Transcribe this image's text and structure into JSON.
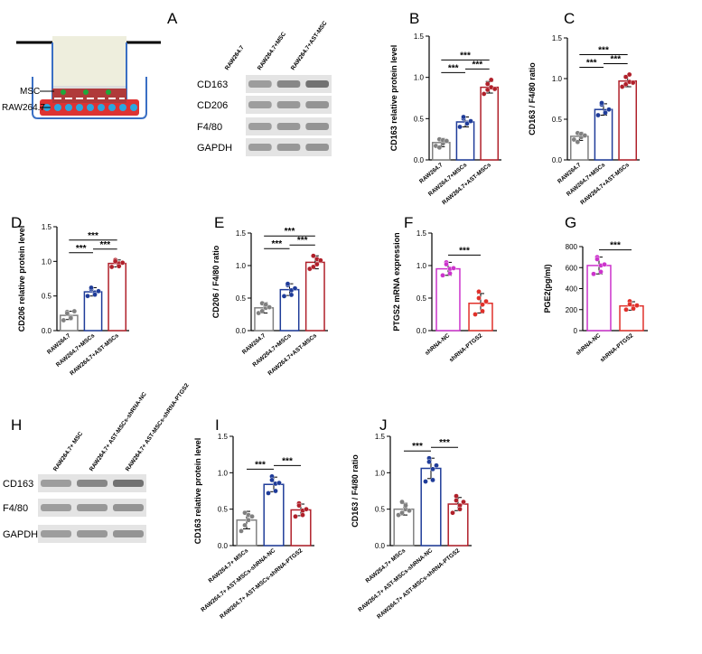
{
  "schematic": {
    "labels": [
      "MSC",
      "RAW264.7"
    ]
  },
  "blots": [
    {
      "panel": "A",
      "columns": [
        "RAW264.7",
        "RAW264.7+MSC",
        "RAW264.7+AST-MSC"
      ],
      "rows": [
        "CD163",
        "CD206",
        "F4/80",
        "GAPDH"
      ]
    },
    {
      "panel": "H",
      "columns": [
        "RAW264.7+ MSC",
        "RAW264.7+ AST-MSCs-shRNA-NC",
        "RAW264.7+ AST-MSCs-shRNA-PTGS2"
      ],
      "rows": [
        "CD163",
        "F4/80",
        "GAPDH"
      ]
    }
  ],
  "chart_data": [
    {
      "type": "bar",
      "panel": "B",
      "ylabel": "CD163 relative protein level",
      "categories": [
        "RAW264.7",
        "RAW264.7+MSCs",
        "RAW264.7+AST-MSCs"
      ],
      "values": [
        0.21,
        0.46,
        0.88
      ],
      "errors": [
        0.05,
        0.06,
        0.07
      ],
      "points": [
        [
          0.17,
          0.25,
          0.2,
          0.15,
          0.24,
          0.23
        ],
        [
          0.4,
          0.5,
          0.45,
          0.52,
          0.44,
          0.47
        ],
        [
          0.8,
          0.92,
          0.97,
          0.85,
          0.88,
          0.86
        ]
      ],
      "colors": [
        "#808080",
        "#1f3c99",
        "#b0202a"
      ],
      "ylim": [
        0,
        1.5
      ],
      "yticks": [
        {
          "value": 0,
          "label": "0.0"
        },
        0.5,
        {
          "value": 1,
          "label": "1.0"
        },
        1.5
      ],
      "comparisons": [
        {
          "pair": [
            "RAW264.7",
            "RAW264.7+MSCs"
          ],
          "label": "***"
        },
        {
          "pair": [
            "RAW264.7+MSCs",
            "RAW264.7+AST-MSCs"
          ],
          "label": "***"
        },
        {
          "pair": [
            "RAW264.7",
            "RAW264.7+AST-MSCs"
          ],
          "label": "***"
        }
      ]
    },
    {
      "type": "bar",
      "panel": "C",
      "ylabel": "CD163 / F4/80 ratio",
      "categories": [
        "RAW264.7",
        "RAW264.7+MSCs",
        "RAW264.7+AST-MSCs"
      ],
      "values": [
        0.29,
        0.62,
        0.97
      ],
      "errors": [
        0.05,
        0.07,
        0.07
      ],
      "points": [
        [
          0.25,
          0.33,
          0.28,
          0.22,
          0.32,
          0.3
        ],
        [
          0.55,
          0.68,
          0.6,
          0.7,
          0.58,
          0.62
        ],
        [
          0.9,
          1.02,
          1.05,
          0.93,
          0.96,
          0.95
        ]
      ],
      "colors": [
        "#808080",
        "#1f3c99",
        "#b0202a"
      ],
      "ylim": [
        0,
        1.5
      ],
      "yticks": [
        {
          "value": 0,
          "label": "0.0"
        },
        0.5,
        {
          "value": 1,
          "label": "1.0"
        },
        1.5
      ],
      "comparisons": [
        {
          "pair": [
            "RAW264.7",
            "RAW264.7+MSCs"
          ],
          "label": "***"
        },
        {
          "pair": [
            "RAW264.7+MSCs",
            "RAW264.7+AST-MSCs"
          ],
          "label": "***"
        },
        {
          "pair": [
            "RAW264.7",
            "RAW264.7+AST-MSCs"
          ],
          "label": "***"
        }
      ]
    },
    {
      "type": "bar",
      "panel": "D",
      "ylabel": "CD206 relative protein level",
      "categories": [
        "RAW264.7",
        "RAW264.7+MSCs",
        "RAW264.7+AST-MSCs"
      ],
      "values": [
        0.22,
        0.56,
        0.97
      ],
      "errors": [
        0.06,
        0.06,
        0.05
      ],
      "points": [
        [
          0.15,
          0.27,
          0.2,
          0.25,
          0.18,
          0.28
        ],
        [
          0.5,
          0.6,
          0.55,
          0.62,
          0.52,
          0.57
        ],
        [
          0.92,
          1.02,
          0.97,
          1.0,
          0.93,
          0.98
        ]
      ],
      "colors": [
        "#808080",
        "#1f3c99",
        "#b0202a"
      ],
      "ylim": [
        0,
        1.5
      ],
      "yticks": [
        {
          "value": 0,
          "label": "0.0"
        },
        0.5,
        {
          "value": 1,
          "label": "1.0"
        },
        1.5
      ],
      "comparisons": [
        {
          "pair": [
            "RAW264.7",
            "RAW264.7+MSCs"
          ],
          "label": "***"
        },
        {
          "pair": [
            "RAW264.7+MSCs",
            "RAW264.7+AST-MSCs"
          ],
          "label": "***"
        },
        {
          "pair": [
            "RAW264.7",
            "RAW264.7+AST-MSCs"
          ],
          "label": "***"
        }
      ]
    },
    {
      "type": "bar",
      "panel": "E",
      "ylabel": "CD206 / F4/80 ratio",
      "categories": [
        "RAW264.7",
        "RAW264.7+MSCs",
        "RAW264.7+AST-MSCs"
      ],
      "values": [
        0.35,
        0.63,
        1.05
      ],
      "errors": [
        0.08,
        0.09,
        0.1
      ],
      "points": [
        [
          0.27,
          0.42,
          0.35,
          0.3,
          0.4,
          0.36
        ],
        [
          0.53,
          0.7,
          0.62,
          0.72,
          0.55,
          0.65
        ],
        [
          0.95,
          1.15,
          1.1,
          0.98,
          1.02,
          1.08
        ]
      ],
      "colors": [
        "#808080",
        "#1f3c99",
        "#b0202a"
      ],
      "ylim": [
        0,
        1.5
      ],
      "yticks": [
        {
          "value": 0,
          "label": "0.0"
        },
        0.5,
        {
          "value": 1,
          "label": "1.0"
        },
        1.5
      ],
      "comparisons": [
        {
          "pair": [
            "RAW264.7",
            "RAW264.7+MSCs"
          ],
          "label": "***"
        },
        {
          "pair": [
            "RAW264.7+MSCs",
            "RAW264.7+AST-MSCs"
          ],
          "label": "***"
        },
        {
          "pair": [
            "RAW264.7",
            "RAW264.7+AST-MSCs"
          ],
          "label": "***"
        }
      ]
    },
    {
      "type": "bar",
      "panel": "F",
      "ylabel": "PTGS2 mRNA expression",
      "categories": [
        "shRNA-NC",
        "shRNA-PTGS2"
      ],
      "values": [
        0.95,
        0.42
      ],
      "errors": [
        0.1,
        0.15
      ],
      "points": [
        [
          0.85,
          1.05,
          0.95,
          1.02,
          0.88,
          0.96
        ],
        [
          0.25,
          0.6,
          0.4,
          0.5,
          0.3,
          0.45
        ]
      ],
      "colors": [
        "#cc33cc",
        "#e0302a"
      ],
      "ylim": [
        0,
        1.5
      ],
      "yticks": [
        {
          "value": 0,
          "label": "0.0"
        },
        0.5,
        {
          "value": 1,
          "label": "1.0"
        },
        1.5
      ],
      "comparisons": [
        {
          "pair": [
            "shRNA-NC",
            "shRNA-PTGS2"
          ],
          "label": "***"
        }
      ]
    },
    {
      "type": "bar",
      "panel": "G",
      "ylabel": "PGE2(pg/ml)",
      "categories": [
        "shRNA-NC",
        "shRNA-PTGS2"
      ],
      "values": [
        620,
        235
      ],
      "errors": [
        80,
        40
      ],
      "points": [
        [
          540,
          700,
          620,
          680,
          560,
          630
        ],
        [
          200,
          280,
          230,
          250,
          210,
          240
        ]
      ],
      "colors": [
        "#cc33cc",
        "#e0302a"
      ],
      "ylim": [
        0,
        800
      ],
      "yticks": [
        0,
        200,
        400,
        600,
        800
      ],
      "comparisons": [
        {
          "pair": [
            "shRNA-NC",
            "shRNA-PTGS2"
          ],
          "label": "***"
        }
      ]
    },
    {
      "type": "bar",
      "panel": "I",
      "ylabel": "CD163 relative protein level",
      "categories": [
        "RAW264.7+ MSCs",
        "RAW264.7+ AST-MSCs-shRNA-NC",
        "RAW264.7+ AST-MSCs-shRNA-PTGS2"
      ],
      "values": [
        0.35,
        0.84,
        0.49
      ],
      "errors": [
        0.12,
        0.1,
        0.08
      ],
      "points": [
        [
          0.2,
          0.45,
          0.35,
          0.28,
          0.42,
          0.4
        ],
        [
          0.72,
          0.95,
          0.85,
          0.9,
          0.75,
          0.86
        ],
        [
          0.4,
          0.58,
          0.48,
          0.55,
          0.42,
          0.5
        ]
      ],
      "colors": [
        "#808080",
        "#1f3c99",
        "#b0202a"
      ],
      "ylim": [
        0,
        1.5
      ],
      "yticks": [
        {
          "value": 0,
          "label": "0.0"
        },
        0.5,
        {
          "value": 1,
          "label": "1.0"
        },
        1.5
      ],
      "comparisons": [
        {
          "pair": [
            "RAW264.7+ MSCs",
            "RAW264.7+ AST-MSCs-shRNA-NC"
          ],
          "label": "***"
        },
        {
          "pair": [
            "RAW264.7+ AST-MSCs-shRNA-NC",
            "RAW264.7+ AST-MSCs-shRNA-PTGS2"
          ],
          "label": "***"
        }
      ]
    },
    {
      "type": "bar",
      "panel": "J",
      "ylabel": "CD163 / F4/80 ratio",
      "categories": [
        "RAW264.7+ MSCs",
        "RAW264.7+ AST-MSCs-shRNA-NC",
        "RAW264.7+ AST-MSCs-shRNA-PTGS2"
      ],
      "values": [
        0.5,
        1.06,
        0.57
      ],
      "errors": [
        0.08,
        0.14,
        0.09
      ],
      "points": [
        [
          0.42,
          0.6,
          0.5,
          0.45,
          0.55,
          0.48
        ],
        [
          0.88,
          1.2,
          1.05,
          1.15,
          0.9,
          1.1
        ],
        [
          0.45,
          0.68,
          0.55,
          0.62,
          0.5,
          0.6
        ]
      ],
      "colors": [
        "#808080",
        "#1f3c99",
        "#b0202a"
      ],
      "ylim": [
        0,
        1.5
      ],
      "yticks": [
        {
          "value": 0,
          "label": "0.0"
        },
        0.5,
        {
          "value": 1,
          "label": "1.0"
        },
        1.5
      ],
      "comparisons": [
        {
          "pair": [
            "RAW264.7+ MSCs",
            "RAW264.7+ AST-MSCs-shRNA-NC"
          ],
          "label": "***"
        },
        {
          "pair": [
            "RAW264.7+ AST-MSCs-shRNA-NC",
            "RAW264.7+ AST-MSCs-shRNA-PTGS2"
          ],
          "label": "***"
        }
      ]
    }
  ]
}
